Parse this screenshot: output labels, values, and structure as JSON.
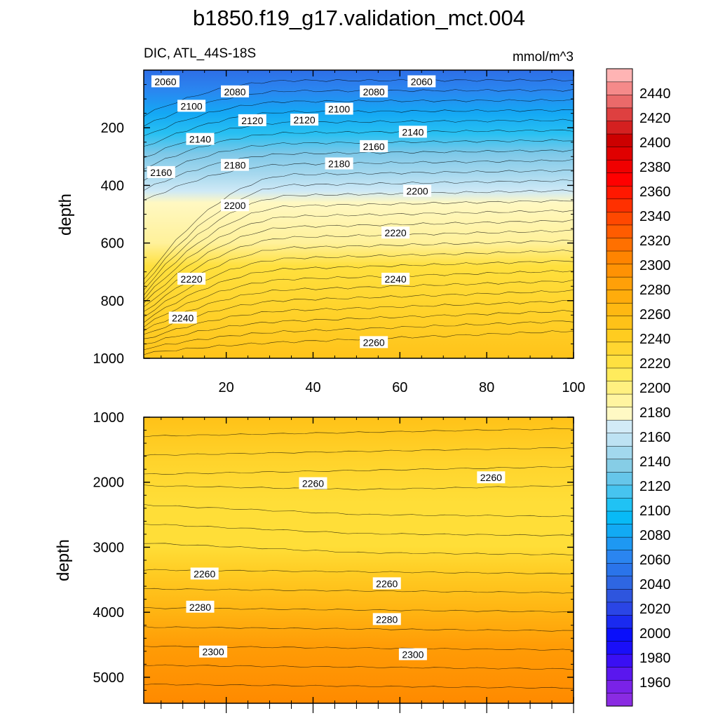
{
  "chart_data": {
    "type": "contour",
    "title": "b1850.f19_g17.validation_mct.004",
    "variable_label": "DIC, ATL_44S-18S",
    "units_label": "mmol/m^3",
    "x_ticks": [
      "20",
      "40",
      "60",
      "80",
      "100"
    ],
    "x_range": [
      1,
      100
    ],
    "colorbar": {
      "levels": [
        1960,
        1980,
        2000,
        2020,
        2040,
        2060,
        2080,
        2100,
        2120,
        2140,
        2160,
        2180,
        2200,
        2220,
        2240,
        2260,
        2280,
        2300,
        2320,
        2340,
        2360,
        2380,
        2400,
        2420,
        2440
      ],
      "tick_labels": [
        "1960",
        "1980",
        "2000",
        "2020",
        "2040",
        "2060",
        "2080",
        "2100",
        "2120",
        "2140",
        "2160",
        "2180",
        "2200",
        "2220",
        "2240",
        "2260",
        "2280",
        "2300",
        "2320",
        "2340",
        "2360",
        "2380",
        "2400",
        "2420",
        "2440"
      ],
      "colors": [
        "#8a2be2",
        "#7a22e8",
        "#5a17ee",
        "#3a0ff4",
        "#1a0ff8",
        "#0a0ffa",
        "#1a2af0",
        "#2a45e6",
        "#2e55de",
        "#2e66e2",
        "#2a74ea",
        "#2a85f0",
        "#1e98f2",
        "#12aaf4",
        "#08baf6",
        "#20c2f4",
        "#46c4f0",
        "#66c6ea",
        "#86cde6",
        "#a2d8ee",
        "#bde2f3",
        "#d2ebf7",
        "#fff9c4",
        "#fff4a0",
        "#fff080",
        "#ffeb5c",
        "#ffe040",
        "#ffd630",
        "#ffcc20",
        "#ffc218",
        "#ffb812",
        "#ffac0c",
        "#ffa008",
        "#ff9204",
        "#ff8400",
        "#ff7000",
        "#ff5c00",
        "#ff4800",
        "#ff3000",
        "#ff1800",
        "#ff0000",
        "#f00000",
        "#e00000",
        "#cc0000",
        "#d42020",
        "#de4040",
        "#ea6a6a",
        "#f58a8a",
        "#ffb4b4"
      ]
    },
    "panels": [
      {
        "name": "upper",
        "ylabel": "depth",
        "y_range": [
          0,
          1000
        ],
        "y_ticks": [
          "200",
          "400",
          "600",
          "800",
          "1000"
        ],
        "y_tick_values": [
          200,
          400,
          600,
          800,
          1000
        ],
        "contour_labels": [
          {
            "text": "2060",
            "x": 6,
            "y": 40
          },
          {
            "text": "2080",
            "x": 22,
            "y": 75
          },
          {
            "text": "2100",
            "x": 12,
            "y": 125
          },
          {
            "text": "2120",
            "x": 26,
            "y": 175
          },
          {
            "text": "2120",
            "x": 38,
            "y": 173
          },
          {
            "text": "2100",
            "x": 46,
            "y": 135
          },
          {
            "text": "2080",
            "x": 54,
            "y": 75
          },
          {
            "text": "2060",
            "x": 65,
            "y": 40
          },
          {
            "text": "2140",
            "x": 14,
            "y": 240
          },
          {
            "text": "2140",
            "x": 63,
            "y": 215
          },
          {
            "text": "2160",
            "x": 5,
            "y": 355
          },
          {
            "text": "2160",
            "x": 54,
            "y": 265
          },
          {
            "text": "2180",
            "x": 22,
            "y": 330
          },
          {
            "text": "2180",
            "x": 46,
            "y": 325
          },
          {
            "text": "2200",
            "x": 22,
            "y": 470
          },
          {
            "text": "2200",
            "x": 64,
            "y": 420
          },
          {
            "text": "2220",
            "x": 59,
            "y": 565
          },
          {
            "text": "2220",
            "x": 12,
            "y": 725
          },
          {
            "text": "2240",
            "x": 59,
            "y": 725
          },
          {
            "text": "2240",
            "x": 10,
            "y": 860
          },
          {
            "text": "2260",
            "x": 54,
            "y": 945
          }
        ]
      },
      {
        "name": "lower",
        "ylabel": "depth",
        "y_range": [
          1000,
          5400
        ],
        "y_ticks": [
          "1000",
          "2000",
          "3000",
          "4000",
          "5000"
        ],
        "y_tick_values": [
          1000,
          2000,
          3000,
          4000,
          5000
        ],
        "contour_labels": [
          {
            "text": "2260",
            "x": 40,
            "y": 2020
          },
          {
            "text": "2260",
            "x": 81,
            "y": 1930
          },
          {
            "text": "2260",
            "x": 15,
            "y": 3410
          },
          {
            "text": "2260",
            "x": 57,
            "y": 3560
          },
          {
            "text": "2280",
            "x": 14,
            "y": 3920
          },
          {
            "text": "2280",
            "x": 57,
            "y": 4110
          },
          {
            "text": "2300",
            "x": 17,
            "y": 4610
          },
          {
            "text": "2300",
            "x": 63,
            "y": 4650
          }
        ]
      }
    ]
  }
}
